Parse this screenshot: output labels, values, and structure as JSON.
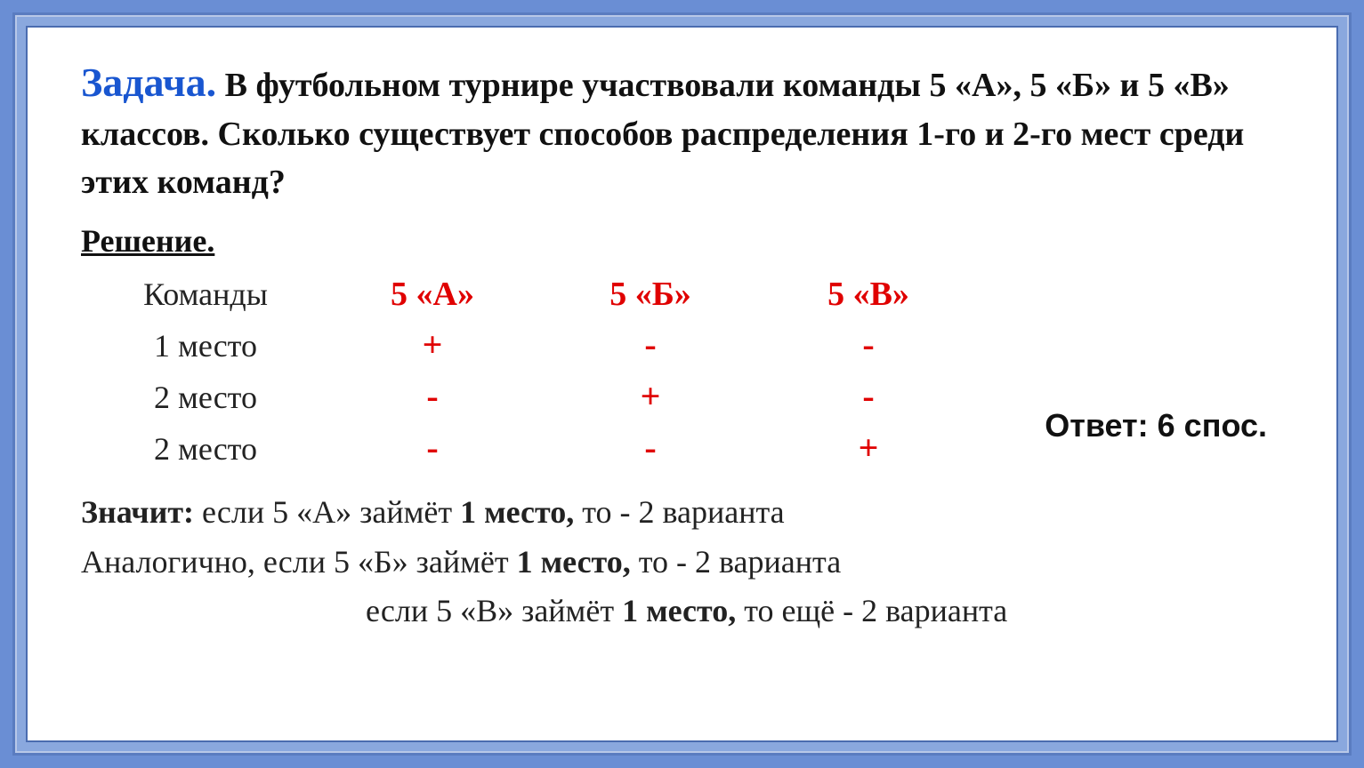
{
  "colors": {
    "accent_blue": "#1956d0",
    "accent_red": "#e00000",
    "text": "#111111",
    "frame_outer": "#6a8ed4",
    "frame_mid": "#8aa8de",
    "frame_border": "#5a7cc0",
    "background": "#ffffff"
  },
  "fonts": {
    "body_family": "Georgia, Times New Roman, serif",
    "answer_family": "Arial, sans-serif",
    "title_size_pt": 46,
    "body_size_pt": 36
  },
  "title": {
    "word": "Задача.",
    "text": "В футбольном турнире участвовали команды  5 «А», 5 «Б» и 5 «В» классов. Сколько существует способов распределения 1-го и 2-го мест среди этих команд?"
  },
  "solution_heading": "Решение.",
  "table": {
    "columns_label": "Команды",
    "teams": [
      "5 «А»",
      "5 «Б»",
      "5 «В»"
    ],
    "rows": [
      {
        "label": "1 место",
        "marks": [
          "+",
          "-",
          "-"
        ]
      },
      {
        "label": "2 место",
        "marks": [
          "-",
          "+",
          "-"
        ]
      },
      {
        "label": "2 место",
        "marks": [
          "-",
          "-",
          "+"
        ]
      }
    ]
  },
  "answer": "Ответ: 6 спос.",
  "conclusion": {
    "line1_bold": "Значит:",
    "line1_rest_a": "  если  5 «А» займёт   ",
    "line1_bold2": "1 место,",
    "line1_rest_b": " то - 2 варианта",
    "line2_a": "Аналогично, если  5 «Б» займёт   ",
    "line2_bold": "1 место,",
    "line2_b": " то - 2 варианта",
    "line3_a": "если  5 «В» займёт   ",
    "line3_bold": "1 место,",
    "line3_b": " то  ещё - 2 варианта"
  }
}
